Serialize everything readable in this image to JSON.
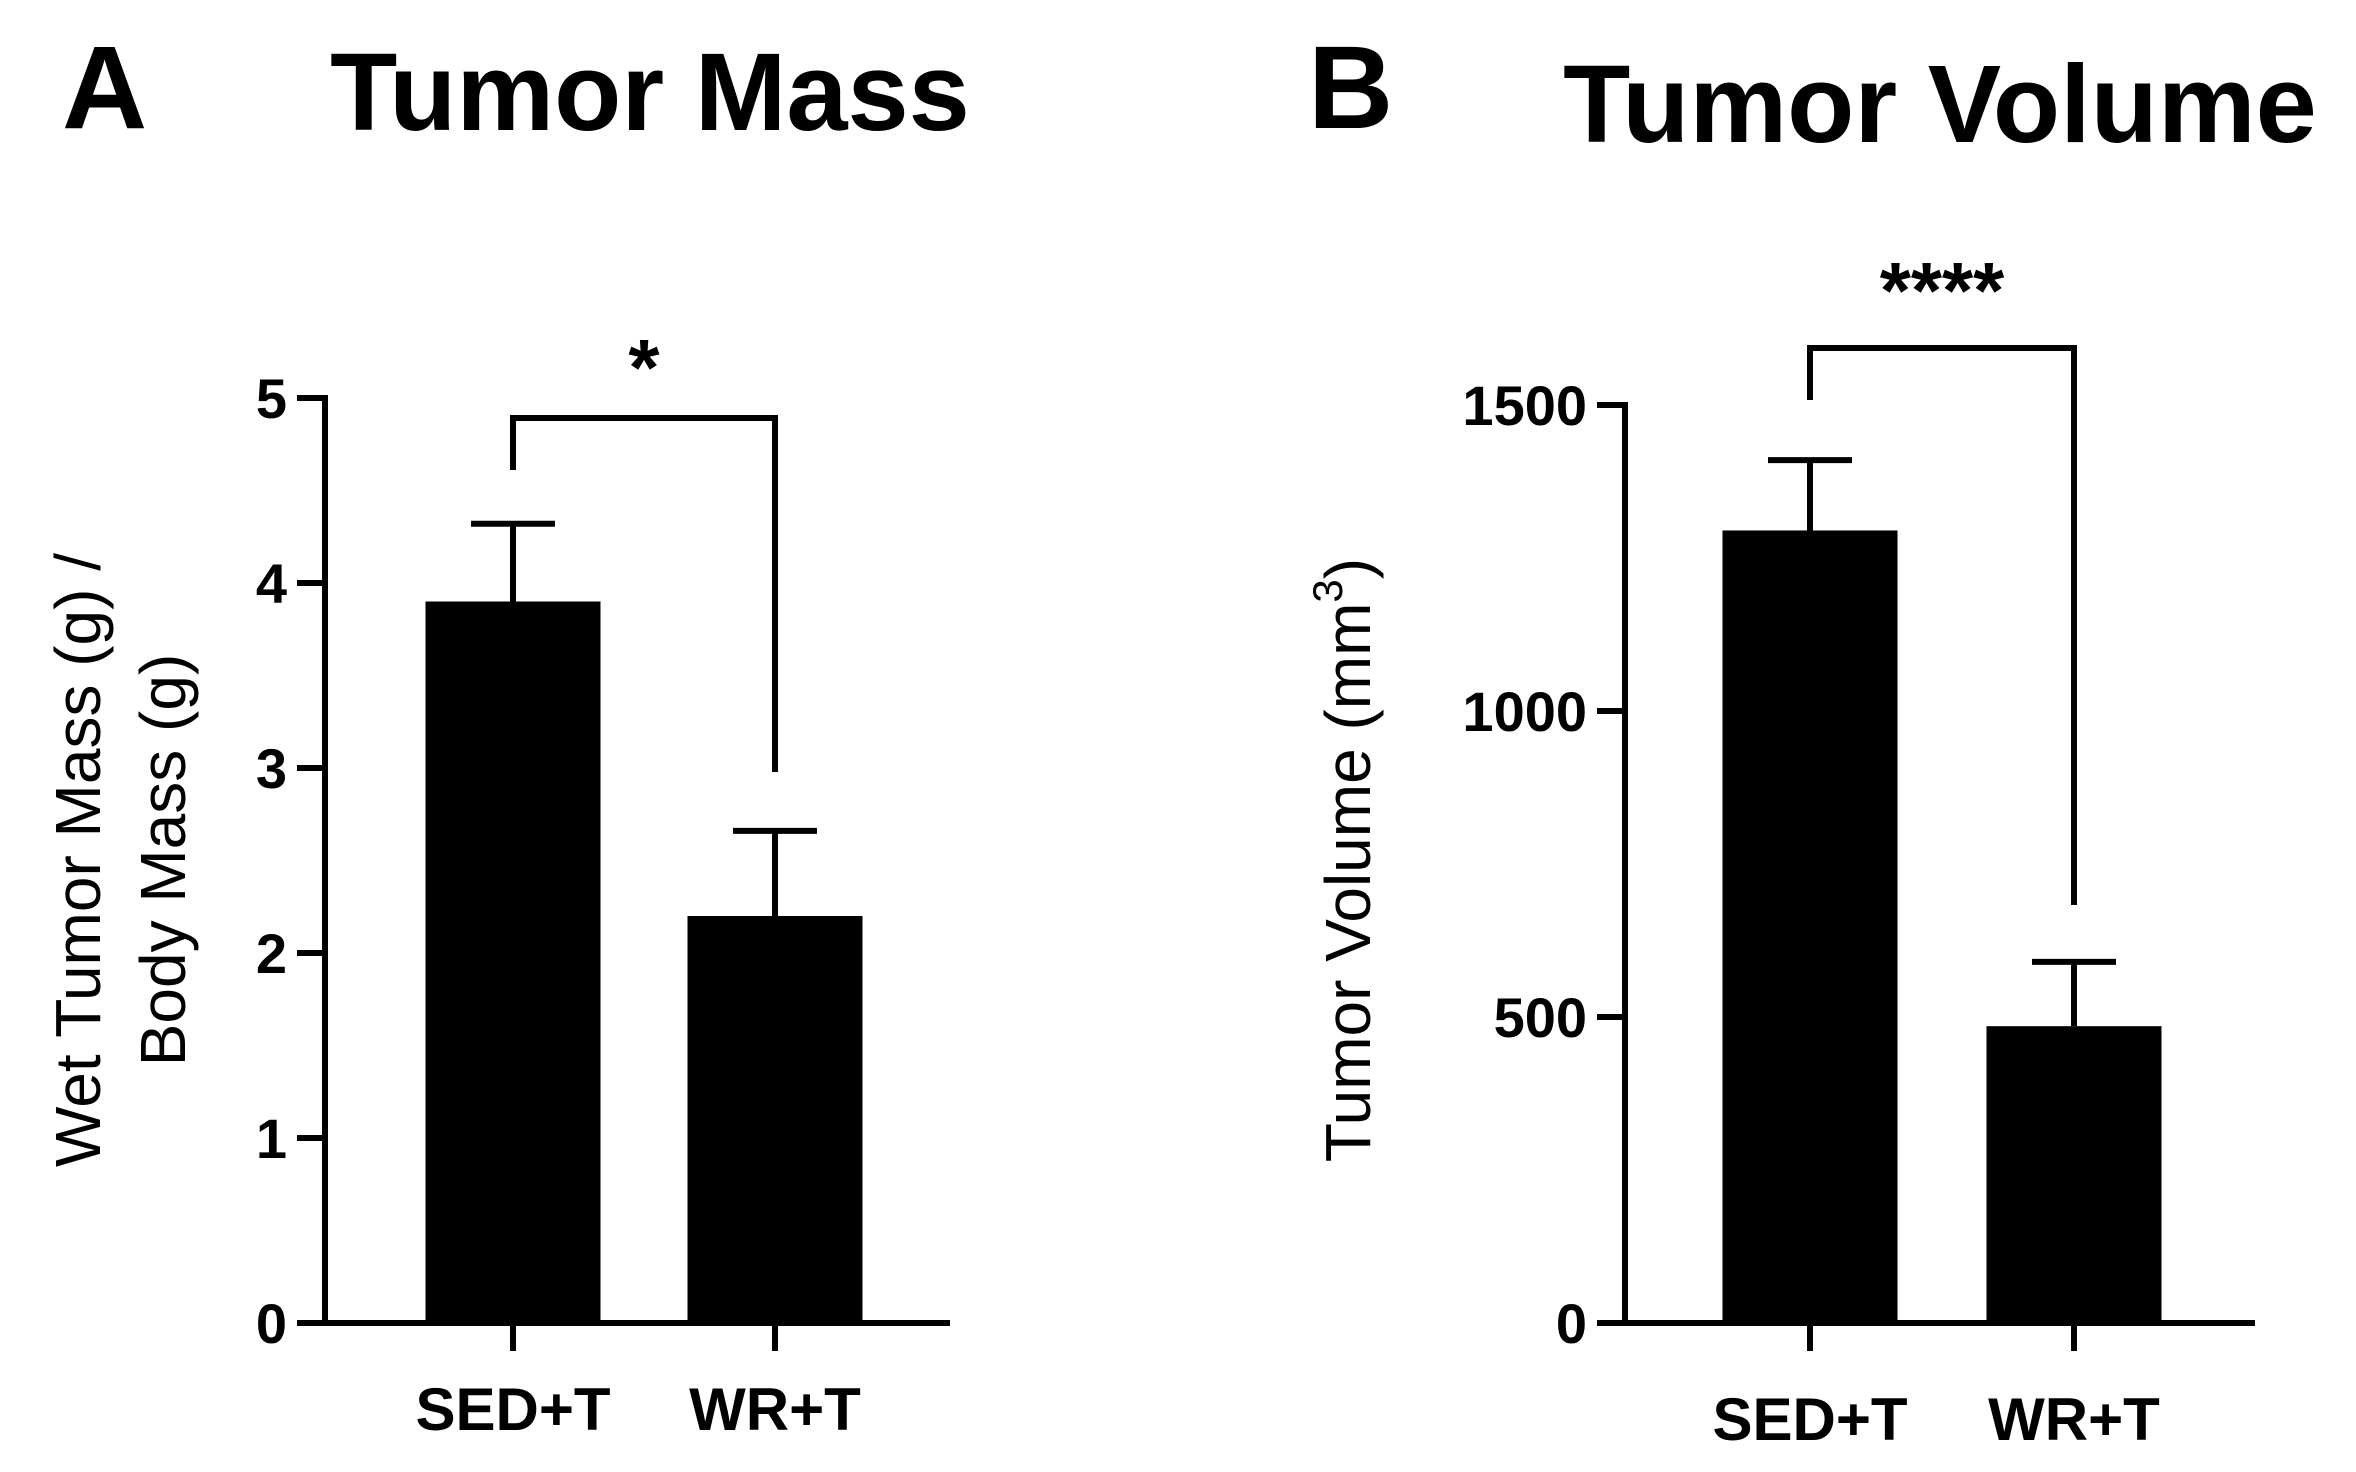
{
  "chart_data": [
    {
      "panel": "A",
      "type": "bar",
      "title": "Tumor Mass",
      "ylabel": "Wet Tumor Mass (g) / Body Mass (g)",
      "ylabel_lines": [
        "Wet Tumor Mass (g) /",
        "Body Mass (g)"
      ],
      "xlabel": "",
      "categories": [
        "SED+T",
        "WR+T"
      ],
      "values": [
        3.9,
        2.2
      ],
      "error": [
        0.42,
        0.46
      ],
      "ylim": [
        0,
        5
      ],
      "yticks": [
        0,
        1,
        2,
        3,
        4,
        5
      ],
      "significance": "*",
      "bar_color": "#000000",
      "grid": false
    },
    {
      "panel": "B",
      "type": "bar",
      "title": "Tumor Volume",
      "ylabel": "Tumor Volume (mm3)",
      "ylabel_main": "Tumor Volume (mm",
      "ylabel_sup": "3",
      "ylabel_close": ")",
      "xlabel": "",
      "categories": [
        "SED+T",
        "WR+T"
      ],
      "values": [
        1295,
        485
      ],
      "error": [
        115,
        105
      ],
      "ylim": [
        0,
        1500
      ],
      "yticks": [
        0,
        500,
        1000,
        1500
      ],
      "significance": "****",
      "bar_color": "#000000",
      "grid": false
    }
  ]
}
